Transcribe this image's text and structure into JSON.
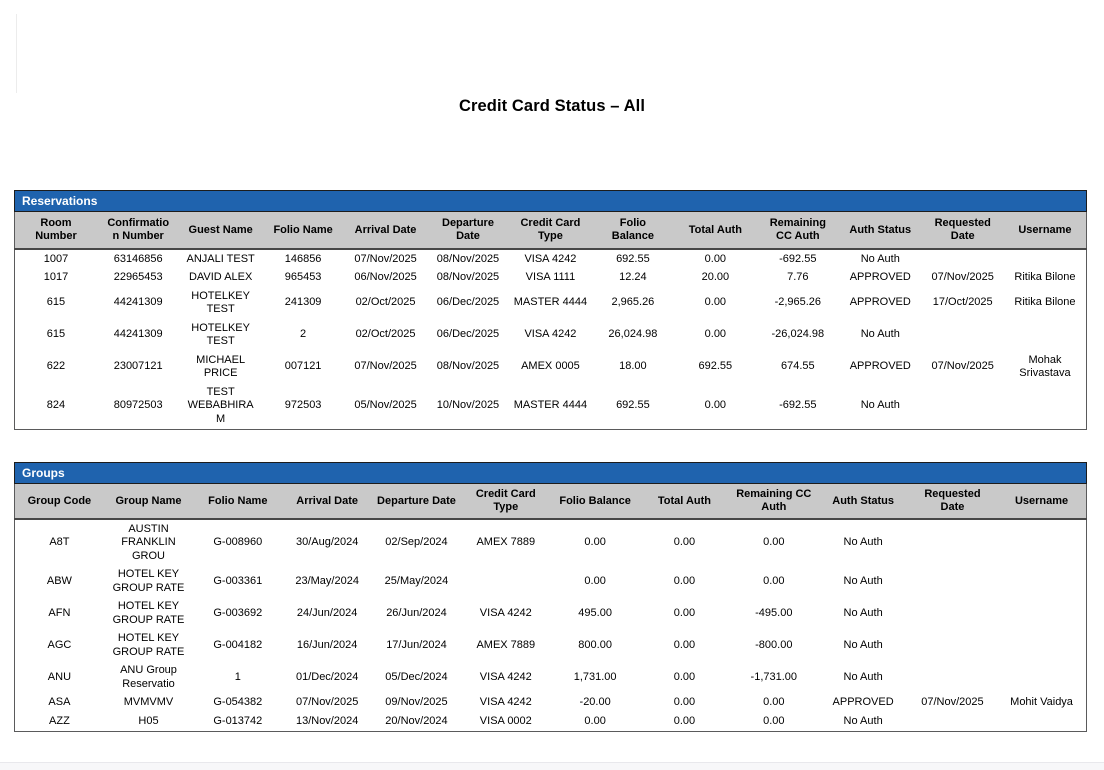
{
  "page": {
    "title": "Credit Card Status – All",
    "colors": {
      "section_bar_bg": "#1f63ae",
      "section_bar_text": "#ffffff",
      "header_row_bg": "#c9c9c9",
      "section_border": "#1c1c1c",
      "table_border": "#5a5a5b"
    }
  },
  "reservations": {
    "title": "Reservations",
    "columns": [
      "Room Number",
      "Confirmation Number",
      "Guest Name",
      "Folio Name",
      "Arrival Date",
      "Departure Date",
      "Credit Card Type",
      "Folio Balance",
      "Total Auth",
      "Remaining CC Auth",
      "Auth Status",
      "Requested Date",
      "Username"
    ],
    "rows": [
      [
        "1007",
        "63146856",
        "ANJALI TEST",
        "146856",
        "07/Nov/2025",
        "08/Nov/2025",
        "VISA 4242",
        "692.55",
        "0.00",
        "-692.55",
        "No Auth",
        "",
        ""
      ],
      [
        "1017",
        "22965453",
        "DAVID ALEX",
        "965453",
        "06/Nov/2025",
        "08/Nov/2025",
        "VISA 1111",
        "12.24",
        "20.00",
        "7.76",
        "APPROVED",
        "07/Nov/2025",
        "Ritika Bilone"
      ],
      [
        "615",
        "44241309",
        "HOTELKEY TEST",
        "241309",
        "02/Oct/2025",
        "06/Dec/2025",
        "MASTER 4444",
        "2,965.26",
        "0.00",
        "-2,965.26",
        "APPROVED",
        "17/Oct/2025",
        "Ritika Bilone"
      ],
      [
        "615",
        "44241309",
        "HOTELKEY TEST",
        "2",
        "02/Oct/2025",
        "06/Dec/2025",
        "VISA 4242",
        "26,024.98",
        "0.00",
        "-26,024.98",
        "No Auth",
        "",
        ""
      ],
      [
        "622",
        "23007121",
        "MICHAEL PRICE",
        "007121",
        "07/Nov/2025",
        "08/Nov/2025",
        "AMEX 0005",
        "18.00",
        "692.55",
        "674.55",
        "APPROVED",
        "07/Nov/2025",
        "Mohak Srivastava"
      ],
      [
        "824",
        "80972503",
        "TEST WEBABHIRAM",
        "972503",
        "05/Nov/2025",
        "10/Nov/2025",
        "MASTER 4444",
        "692.55",
        "0.00",
        "-692.55",
        "No Auth",
        "",
        ""
      ]
    ]
  },
  "groups": {
    "title": "Groups",
    "columns": [
      "Group Code",
      "Group Name",
      "Folio Name",
      "Arrival Date",
      "Departure Date",
      "Credit Card Type",
      "Folio Balance",
      "Total Auth",
      "Remaining CC Auth",
      "Auth Status",
      "Requested Date",
      "Username"
    ],
    "rows": [
      [
        "A8T",
        "AUSTIN FRANKLIN GROU",
        "G-008960",
        "30/Aug/2024",
        "02/Sep/2024",
        "AMEX 7889",
        "0.00",
        "0.00",
        "0.00",
        "No Auth",
        "",
        ""
      ],
      [
        "ABW",
        "HOTEL KEY GROUP RATE",
        "G-003361",
        "23/May/2024",
        "25/May/2024",
        "",
        "0.00",
        "0.00",
        "0.00",
        "No Auth",
        "",
        ""
      ],
      [
        "AFN",
        "HOTEL KEY GROUP RATE",
        "G-003692",
        "24/Jun/2024",
        "26/Jun/2024",
        "VISA 4242",
        "495.00",
        "0.00",
        "-495.00",
        "No Auth",
        "",
        ""
      ],
      [
        "AGC",
        "HOTEL KEY GROUP RATE",
        "G-004182",
        "16/Jun/2024",
        "17/Jun/2024",
        "AMEX 7889",
        "800.00",
        "0.00",
        "-800.00",
        "No Auth",
        "",
        ""
      ],
      [
        "ANU",
        "ANU Group Reservatio",
        "1",
        "01/Dec/2024",
        "05/Dec/2024",
        "VISA 4242",
        "1,731.00",
        "0.00",
        "-1,731.00",
        "No Auth",
        "",
        ""
      ],
      [
        "ASA",
        "MVMVMV",
        "G-054382",
        "07/Nov/2025",
        "09/Nov/2025",
        "VISA 4242",
        "-20.00",
        "0.00",
        "0.00",
        "APPROVED",
        "07/Nov/2025",
        "Mohit Vaidya"
      ],
      [
        "AZZ",
        "H05",
        "G-013742",
        "13/Nov/2024",
        "20/Nov/2024",
        "VISA 0002",
        "0.00",
        "0.00",
        "0.00",
        "No Auth",
        "",
        ""
      ]
    ]
  }
}
